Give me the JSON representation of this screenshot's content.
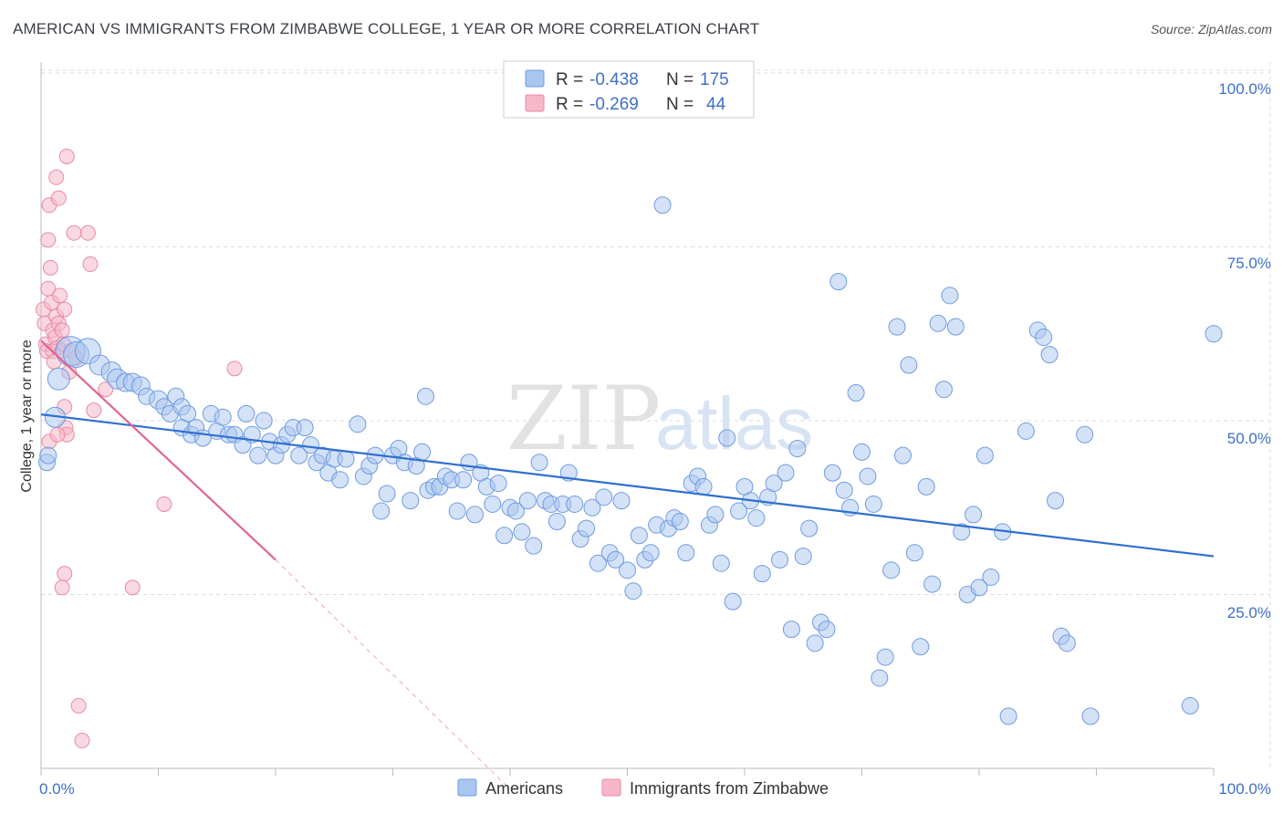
{
  "title": "AMERICAN VS IMMIGRANTS FROM ZIMBABWE COLLEGE, 1 YEAR OR MORE CORRELATION CHART",
  "source": "Source: ZipAtlas.com",
  "watermark": {
    "zip": "ZIP",
    "atlas": "atlas"
  },
  "colors": {
    "americans_fill": "#a9c6f0",
    "americans_stroke": "#6f9be0",
    "americans_line": "#2f6fd0",
    "zimbabwe_fill": "#f6b8c8",
    "zimbabwe_stroke": "#e98aa6",
    "zimbabwe_line": "#e06690",
    "axis_text": "#3f6fc7",
    "grid": "#dddddd"
  },
  "legend": {
    "r_label": "R =",
    "n_label": "N =",
    "americans": {
      "r": "-0.438",
      "n": "175"
    },
    "zimbabwe": {
      "r": "-0.269",
      "n": "44"
    }
  },
  "chart_data": {
    "type": "scatter",
    "title": "AMERICAN VS IMMIGRANTS FROM ZIMBABWE COLLEGE, 1 YEAR OR MORE CORRELATION CHART",
    "xlabel": "",
    "ylabel": "College, 1 year or more",
    "xlim": [
      0,
      100
    ],
    "ylim": [
      0,
      102
    ],
    "x_tick_labels": [
      "0.0%",
      "100.0%"
    ],
    "y_tick_labels": [
      "25.0%",
      "50.0%",
      "75.0%",
      "100.0%"
    ],
    "y_ticks": [
      25,
      50,
      75,
      100
    ],
    "legend_position": "top-center",
    "series": [
      {
        "name": "Americans",
        "trend": {
          "x": [
            0,
            100
          ],
          "y": [
            50.9,
            30.5
          ]
        },
        "points": [
          [
            0.5,
            44,
            7
          ],
          [
            0.6,
            45,
            7
          ],
          [
            1.2,
            50.5,
            9
          ],
          [
            1.5,
            56,
            10
          ],
          [
            2.5,
            60,
            14
          ],
          [
            3.0,
            59.5,
            12
          ],
          [
            4.0,
            60,
            12
          ],
          [
            5.0,
            58,
            9
          ],
          [
            6.0,
            57,
            9
          ],
          [
            6.5,
            56,
            9
          ],
          [
            7.2,
            55.5,
            8
          ],
          [
            7.8,
            55.5,
            8
          ],
          [
            8.5,
            55,
            8
          ],
          [
            9.0,
            53.5,
            7
          ],
          [
            10.0,
            53,
            8
          ],
          [
            10.5,
            52,
            7
          ],
          [
            11.0,
            51,
            7
          ],
          [
            11.5,
            53.5,
            7
          ],
          [
            12.0,
            52,
            7
          ],
          [
            12.5,
            51,
            7
          ],
          [
            12.0,
            49,
            7
          ],
          [
            12.8,
            48,
            7
          ],
          [
            13.2,
            49,
            7
          ],
          [
            13.8,
            47.5,
            7
          ],
          [
            14.5,
            51,
            7
          ],
          [
            15.0,
            48.5,
            7
          ],
          [
            15.5,
            50.5,
            7
          ],
          [
            16,
            48,
            7
          ],
          [
            16.5,
            48,
            7
          ],
          [
            17.2,
            46.5,
            7
          ],
          [
            17.5,
            51,
            7
          ],
          [
            18,
            48,
            7
          ],
          [
            18.5,
            45,
            7
          ],
          [
            19,
            50,
            7
          ],
          [
            19.5,
            47,
            7
          ],
          [
            20,
            45,
            7
          ],
          [
            20.5,
            46.5,
            7
          ],
          [
            21,
            48,
            7
          ],
          [
            21.5,
            49,
            7
          ],
          [
            22,
            45,
            7
          ],
          [
            22.5,
            49,
            7
          ],
          [
            23,
            46.5,
            7
          ],
          [
            23.5,
            44,
            7
          ],
          [
            24,
            45,
            7
          ],
          [
            24.5,
            42.5,
            7
          ],
          [
            25,
            44.5,
            7
          ],
          [
            25.5,
            41.5,
            7
          ],
          [
            26,
            44.5,
            7
          ],
          [
            27,
            49.5,
            7
          ],
          [
            27.5,
            42,
            7
          ],
          [
            28,
            43.5,
            7
          ],
          [
            28.5,
            45,
            7
          ],
          [
            29,
            37,
            7
          ],
          [
            29.5,
            39.5,
            7
          ],
          [
            30,
            45,
            7
          ],
          [
            30.5,
            46,
            7
          ],
          [
            31,
            44,
            7
          ],
          [
            31.5,
            38.5,
            7
          ],
          [
            32,
            43.5,
            7
          ],
          [
            32.5,
            45.5,
            7
          ],
          [
            32.8,
            53.5,
            7
          ],
          [
            33,
            40,
            7
          ],
          [
            33.5,
            40.5,
            7
          ],
          [
            34,
            40.5,
            7
          ],
          [
            34.5,
            42,
            7
          ],
          [
            35,
            41.5,
            7
          ],
          [
            35.5,
            37,
            7
          ],
          [
            36,
            41.5,
            7
          ],
          [
            36.5,
            44,
            7
          ],
          [
            37,
            36.5,
            7
          ],
          [
            37.5,
            42.5,
            7
          ],
          [
            38,
            40.5,
            7
          ],
          [
            38.5,
            38,
            7
          ],
          [
            39,
            41,
            7
          ],
          [
            39.5,
            33.5,
            7
          ],
          [
            40,
            37.5,
            7
          ],
          [
            40.5,
            37,
            7
          ],
          [
            41,
            34,
            7
          ],
          [
            41.5,
            38.5,
            7
          ],
          [
            42,
            32,
            7
          ],
          [
            42.5,
            44,
            7
          ],
          [
            43,
            38.5,
            7
          ],
          [
            43.5,
            38,
            7
          ],
          [
            44,
            35.5,
            7
          ],
          [
            44.5,
            38,
            7
          ],
          [
            45,
            42.5,
            7
          ],
          [
            45.5,
            38,
            7
          ],
          [
            46,
            33,
            7
          ],
          [
            46.5,
            34.5,
            7
          ],
          [
            47,
            37.5,
            7
          ],
          [
            47.5,
            29.5,
            7
          ],
          [
            48,
            39,
            7
          ],
          [
            48.5,
            31,
            7
          ],
          [
            49,
            30,
            7
          ],
          [
            49.5,
            38.5,
            7
          ],
          [
            50,
            28.5,
            7
          ],
          [
            50.5,
            25.5,
            7
          ],
          [
            51,
            33.5,
            7
          ],
          [
            51.5,
            30,
            7
          ],
          [
            52,
            31,
            7
          ],
          [
            52.5,
            35,
            7
          ],
          [
            53,
            81,
            7
          ],
          [
            53.5,
            34.5,
            7
          ],
          [
            54,
            36,
            7
          ],
          [
            54.5,
            35.5,
            7
          ],
          [
            55,
            31,
            7
          ],
          [
            55.5,
            41,
            7
          ],
          [
            56,
            42,
            7
          ],
          [
            56.5,
            40.5,
            7
          ],
          [
            57,
            35,
            7
          ],
          [
            57.5,
            36.5,
            7
          ],
          [
            58,
            29.5,
            7
          ],
          [
            58.5,
            47.5,
            7
          ],
          [
            59,
            24,
            7
          ],
          [
            59.5,
            37,
            7
          ],
          [
            60,
            40.5,
            7
          ],
          [
            60.5,
            38.5,
            7
          ],
          [
            61,
            36,
            7
          ],
          [
            61.5,
            28,
            7
          ],
          [
            62,
            39,
            7
          ],
          [
            62.5,
            41,
            7
          ],
          [
            63,
            30,
            7
          ],
          [
            63.5,
            42.5,
            7
          ],
          [
            64,
            20,
            7
          ],
          [
            64.5,
            46,
            7
          ],
          [
            65,
            30.5,
            7
          ],
          [
            65.5,
            34.5,
            7
          ],
          [
            66,
            18,
            7
          ],
          [
            66.5,
            21,
            7
          ],
          [
            67,
            20,
            7
          ],
          [
            67.5,
            42.5,
            7
          ],
          [
            68,
            70,
            7
          ],
          [
            68.5,
            40,
            7
          ],
          [
            69,
            37.5,
            7
          ],
          [
            69.5,
            54,
            7
          ],
          [
            70,
            45.5,
            7
          ],
          [
            70.5,
            42,
            7
          ],
          [
            71,
            38,
            7
          ],
          [
            71.5,
            13,
            7
          ],
          [
            72,
            16,
            7
          ],
          [
            72.5,
            28.5,
            7
          ],
          [
            73,
            63.5,
            7
          ],
          [
            73.5,
            45,
            7
          ],
          [
            74,
            58,
            7
          ],
          [
            74.5,
            31,
            7
          ],
          [
            75,
            17.5,
            7
          ],
          [
            75.5,
            40.5,
            7
          ],
          [
            76,
            26.5,
            7
          ],
          [
            76.5,
            64,
            7
          ],
          [
            77,
            54.5,
            7
          ],
          [
            77.5,
            68,
            7
          ],
          [
            78,
            63.5,
            7
          ],
          [
            78.5,
            34,
            7
          ],
          [
            79,
            25,
            7
          ],
          [
            79.5,
            36.5,
            7
          ],
          [
            80,
            26,
            7
          ],
          [
            80.5,
            45,
            7
          ],
          [
            81,
            27.5,
            7
          ],
          [
            82,
            34,
            7
          ],
          [
            82.5,
            7.5,
            7
          ],
          [
            84,
            48.5,
            7
          ],
          [
            85,
            63,
            7
          ],
          [
            85.5,
            62,
            7
          ],
          [
            86,
            59.5,
            7
          ],
          [
            86.5,
            38.5,
            7
          ],
          [
            87,
            19,
            7
          ],
          [
            87.5,
            18,
            7
          ],
          [
            89,
            48,
            7
          ],
          [
            89.5,
            7.5,
            7
          ],
          [
            98,
            9,
            7
          ],
          [
            100,
            62.5,
            7
          ]
        ]
      },
      {
        "name": "Immigrants from Zimbabwe",
        "trend": {
          "x": [
            0,
            20,
            40
          ],
          "y": [
            61.5,
            30,
            -3
          ]
        },
        "points": [
          [
            0.2,
            66,
            7
          ],
          [
            0.3,
            64,
            7
          ],
          [
            0.4,
            61,
            7
          ],
          [
            0.5,
            60,
            7
          ],
          [
            0.6,
            69,
            7
          ],
          [
            0.6,
            76,
            7
          ],
          [
            0.7,
            81,
            7
          ],
          [
            0.8,
            72,
            7
          ],
          [
            0.9,
            67,
            7
          ],
          [
            1.0,
            63,
            7
          ],
          [
            1.0,
            60,
            7
          ],
          [
            1.1,
            58.5,
            7
          ],
          [
            1.2,
            62,
            7
          ],
          [
            1.3,
            65,
            7
          ],
          [
            1.4,
            60.5,
            7
          ],
          [
            1.5,
            64,
            7
          ],
          [
            1.6,
            68,
            7
          ],
          [
            1.3,
            85,
            7
          ],
          [
            1.5,
            82,
            7
          ],
          [
            1.8,
            60,
            7
          ],
          [
            1.8,
            63,
            7
          ],
          [
            1.9,
            61,
            7
          ],
          [
            2.0,
            66,
            7
          ],
          [
            2.0,
            52,
            7
          ],
          [
            2.1,
            49,
            7
          ],
          [
            2.2,
            48,
            7
          ],
          [
            2.0,
            28,
            7
          ],
          [
            1.8,
            26,
            7
          ],
          [
            2.2,
            88,
            7
          ],
          [
            2.4,
            57,
            7
          ],
          [
            2.6,
            60,
            7
          ],
          [
            2.8,
            77,
            7
          ],
          [
            3.0,
            59,
            7
          ],
          [
            3.2,
            9,
            7
          ],
          [
            3.5,
            4,
            7
          ],
          [
            4.0,
            77,
            7
          ],
          [
            4.2,
            72.5,
            7
          ],
          [
            4.5,
            51.5,
            7
          ],
          [
            5.5,
            54.5,
            7
          ],
          [
            7.8,
            26,
            7
          ],
          [
            10.5,
            38,
            7
          ],
          [
            16.5,
            57.5,
            7
          ],
          [
            0.7,
            47,
            7
          ],
          [
            1.4,
            48,
            7
          ]
        ]
      }
    ]
  },
  "bottom_legend": {
    "americans": "Americans",
    "zimbabwe": "Immigrants from Zimbabwe"
  }
}
